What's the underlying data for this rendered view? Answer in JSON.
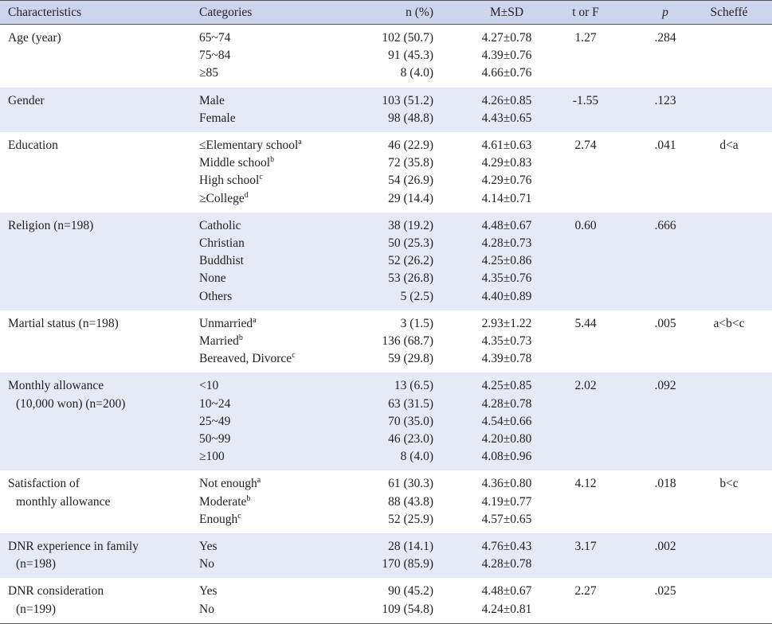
{
  "header": {
    "characteristics": "Characteristics",
    "categories": "Categories",
    "n_pct": "n (%)",
    "m_sd": "M±SD",
    "t_or_f": "t or F",
    "p": "p",
    "scheffe": "Scheffé"
  },
  "groups": [
    {
      "characteristic": [
        "Age (year)"
      ],
      "categories": [
        "65~74",
        "75~84",
        "≥85"
      ],
      "sups": [
        "",
        "",
        ""
      ],
      "n": [
        "102 (50.7)",
        "91 (45.3)",
        "8 (4.0)"
      ],
      "msd": [
        "4.27±0.78",
        "4.39±0.76",
        "4.66±0.76"
      ],
      "t": "1.27",
      "p": ".284",
      "scheffe": ""
    },
    {
      "characteristic": [
        "Gender"
      ],
      "categories": [
        "Male",
        "Female"
      ],
      "sups": [
        "",
        ""
      ],
      "n": [
        "103 (51.2)",
        "98 (48.8)"
      ],
      "msd": [
        "4.26±0.85",
        "4.43±0.65"
      ],
      "t": "-1.55",
      "p": ".123",
      "scheffe": ""
    },
    {
      "characteristic": [
        "Education"
      ],
      "categories": [
        "≤Elementary school",
        "Middle school",
        "High school",
        "≥College"
      ],
      "sups": [
        "a",
        "b",
        "c",
        "d"
      ],
      "n": [
        "46 (22.9)",
        "72 (35.8)",
        "54 (26.9)",
        "29 (14.4)"
      ],
      "msd": [
        "4.61±0.63",
        "4.29±0.83",
        "4.29±0.76",
        "4.14±0.71"
      ],
      "t": "2.74",
      "p": ".041",
      "scheffe": "d<a"
    },
    {
      "characteristic": [
        "Religion (n=198)"
      ],
      "categories": [
        "Catholic",
        "Christian",
        "Buddhist",
        "None",
        "Others"
      ],
      "sups": [
        "",
        "",
        "",
        "",
        ""
      ],
      "n": [
        "38 (19.2)",
        "50 (25.3)",
        "52 (26.2)",
        "53 (26.8)",
        "5 (2.5)"
      ],
      "msd": [
        "4.48±0.67",
        "4.28±0.73",
        "4.25±0.86",
        "4.35±0.76",
        "4.40±0.89"
      ],
      "t": "0.60",
      "p": ".666",
      "scheffe": ""
    },
    {
      "characteristic": [
        "Martial status (n=198)"
      ],
      "categories": [
        "Unmarried",
        "Married",
        "Bereaved, Divorce"
      ],
      "sups": [
        "a",
        "b",
        "c"
      ],
      "n": [
        "3 (1.5)",
        "136 (68.7)",
        "59 (29.8)"
      ],
      "msd": [
        "2.93±1.22",
        "4.35±0.73",
        "4.39±0.78"
      ],
      "t": "5.44",
      "p": ".005",
      "scheffe": "a<b<c"
    },
    {
      "characteristic": [
        "Monthly allowance",
        "(10,000 won) (n=200)"
      ],
      "categories": [
        "<10",
        "10~24",
        "25~49",
        "50~99",
        "≥100"
      ],
      "sups": [
        "",
        "",
        "",
        "",
        ""
      ],
      "n": [
        "13 (6.5)",
        "63 (31.5)",
        "70 (35.0)",
        "46 (23.0)",
        "8 (4.0)"
      ],
      "msd": [
        "4.25±0.85",
        "4.28±0.78",
        "4.54±0.66",
        "4.20±0.80",
        "4.08±0.96"
      ],
      "t": "2.02",
      "p": ".092",
      "scheffe": ""
    },
    {
      "characteristic": [
        "Satisfaction of",
        "monthly allowance"
      ],
      "categories": [
        "Not enough",
        "Moderate",
        "Enough"
      ],
      "sups": [
        "a",
        "b",
        "c"
      ],
      "n": [
        "61 (30.3)",
        "88 (43.8)",
        "52 (25.9)"
      ],
      "msd": [
        "4.36±0.80",
        "4.19±0.77",
        "4.57±0.65"
      ],
      "t": "4.12",
      "p": ".018",
      "scheffe": "b<c"
    },
    {
      "characteristic": [
        "DNR experience in family",
        "(n=198)"
      ],
      "categories": [
        "Yes",
        "No"
      ],
      "sups": [
        "",
        ""
      ],
      "n": [
        "28 (14.1)",
        "170 (85.9)"
      ],
      "msd": [
        "4.76±0.43",
        "4.28±0.78"
      ],
      "t": "3.17",
      "p": ".002",
      "scheffe": ""
    },
    {
      "characteristic": [
        "DNR consideration",
        "(n=199)"
      ],
      "categories": [
        "Yes",
        "No"
      ],
      "sups": [
        "",
        ""
      ],
      "n": [
        "90 (45.2)",
        "109 (54.8)"
      ],
      "msd": [
        "4.48±0.67",
        "4.24±0.81"
      ],
      "t": "2.27",
      "p": ".025",
      "scheffe": ""
    }
  ]
}
